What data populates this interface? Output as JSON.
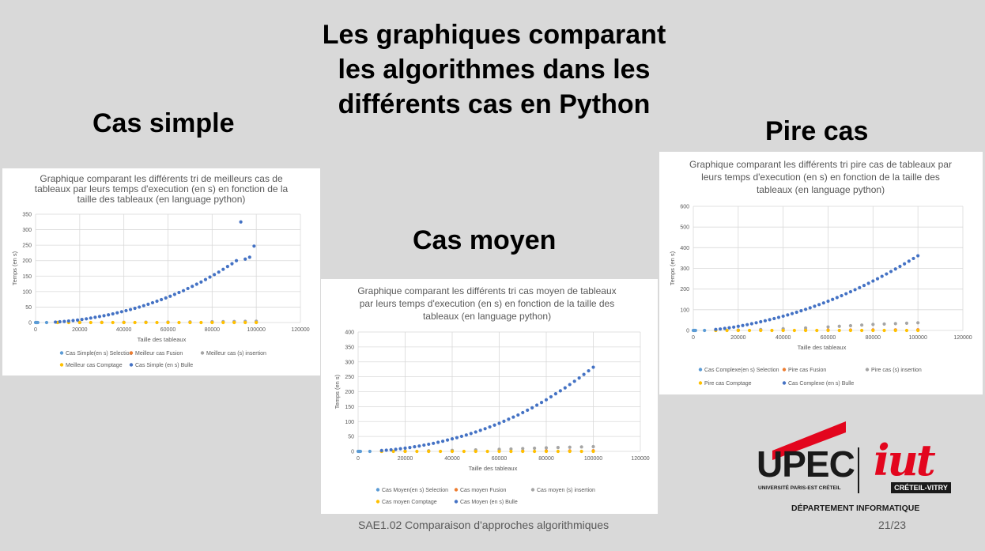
{
  "slide": {
    "title_lines": [
      "Les graphiques comparant",
      "les algorithmes dans les",
      "différents cas en Python"
    ],
    "footer": "SAE1.02 Comparaison d'approches algorithmiques",
    "page_number": "21/23",
    "department": "DÉPARTEMENT INFORMATIQUE",
    "logo": {
      "upec": "UPEC",
      "upec_sub": "UNIVERSITÉ PARIS-EST CRÉTEIL",
      "iut": "iut",
      "iut_badge": "CRÉTEIL-VITRY"
    }
  },
  "sections": {
    "simple": "Cas simple",
    "moyen": "Cas moyen",
    "pire": "Pire cas"
  },
  "colors": {
    "selection": "#5b9bd5",
    "fusion": "#ed7d31",
    "insertion": "#a5a5a5",
    "comptage": "#ffc000",
    "bulle": "#4472c4"
  },
  "chart_data": [
    {
      "id": "simple",
      "type": "scatter",
      "title_lines": [
        "Graphique comparant les différents tri de meilleurs cas de",
        "tableaux par leurs temps d'execution (en s) en fonction de la",
        "taille des tableaux (en language python)"
      ],
      "xlabel": "Taille des tableaux",
      "ylabel": "Temps (en s)",
      "xlim": [
        0,
        120000
      ],
      "ylim": [
        0,
        350
      ],
      "x_ticks": [
        0,
        20000,
        40000,
        60000,
        80000,
        100000,
        120000
      ],
      "y_ticks": [
        0,
        50,
        100,
        150,
        200,
        250,
        300,
        350
      ],
      "grid": true,
      "legend_position": "bottom",
      "series": [
        {
          "name": "Cas Simple(en s) Selection",
          "color_key": "selection",
          "x": [
            0,
            500,
            1000,
            5000
          ],
          "y": [
            0,
            0,
            0,
            0
          ]
        },
        {
          "name": "Meilleur cas Fusion",
          "color_key": "fusion",
          "x": [
            10000,
            20000,
            30000,
            40000,
            50000,
            60000,
            70000,
            80000,
            90000,
            100000
          ],
          "y": [
            0.1,
            0.2,
            0.3,
            0.4,
            0.5,
            0.6,
            0.7,
            0.8,
            0.9,
            1.0
          ]
        },
        {
          "name": "Meilleur cas (s) insertion",
          "color_key": "insertion",
          "x": [
            10000,
            20000,
            30000,
            40000,
            50000,
            60000,
            70000,
            80000,
            85000,
            90000,
            95000,
            100000
          ],
          "y": [
            0.1,
            0.3,
            0.5,
            0.8,
            1.1,
            1.5,
            2,
            2.6,
            3.0,
            3.4,
            3.8,
            4.2
          ]
        },
        {
          "name": "Meilleur cas Comptage",
          "color_key": "comptage",
          "x": [
            10000,
            15000,
            20000,
            25000,
            30000,
            35000,
            40000,
            45000,
            50000,
            55000,
            60000,
            65000,
            70000,
            75000,
            80000,
            85000,
            90000,
            95000,
            100000
          ],
          "y": [
            0,
            0,
            0,
            0,
            0,
            0,
            0,
            0,
            0,
            0,
            0,
            0,
            0,
            0,
            0,
            0,
            0,
            0,
            0
          ]
        },
        {
          "name": "Cas Simple (en s) Bulle",
          "color_key": "bulle",
          "x": [
            9000,
            11000,
            13000,
            15000,
            17000,
            19000,
            21000,
            23000,
            25000,
            27000,
            29000,
            31000,
            33000,
            35000,
            37000,
            39000,
            41000,
            43000,
            45000,
            47000,
            49000,
            51000,
            53000,
            55000,
            57000,
            59000,
            61000,
            63000,
            65000,
            67000,
            69000,
            71000,
            73000,
            75000,
            77000,
            79000,
            81000,
            83000,
            85000,
            87000,
            89000,
            91000,
            93000,
            95000,
            97000,
            99000
          ],
          "y": [
            1.5,
            2.5,
            3.5,
            5,
            6.5,
            8,
            10,
            12,
            14.5,
            17,
            19.5,
            22,
            25,
            28,
            31.5,
            35,
            38.5,
            42,
            46,
            50,
            54.5,
            59,
            64,
            69,
            74,
            79.5,
            85,
            91,
            97,
            103,
            110,
            117,
            124,
            131,
            139,
            147,
            155,
            163,
            172,
            181,
            190,
            200,
            325,
            205,
            211,
            247
          ]
        }
      ]
    },
    {
      "id": "moyen",
      "type": "scatter",
      "title_lines": [
        "Graphique comparant les différents tri cas moyen de tableaux",
        "par leurs temps d'execution (en s) en fonction de la taille des",
        "tableaux (en language python)"
      ],
      "xlabel": "Taille des tableaux",
      "ylabel": "Temps (en s)",
      "xlim": [
        0,
        120000
      ],
      "ylim": [
        0,
        400
      ],
      "x_ticks": [
        0,
        20000,
        40000,
        60000,
        80000,
        100000,
        120000
      ],
      "y_ticks": [
        0,
        50,
        100,
        150,
        200,
        250,
        300,
        350,
        400
      ],
      "grid": true,
      "legend_position": "bottom",
      "series": [
        {
          "name": "Cas Moyen(en s) Selection",
          "color_key": "selection",
          "x": [
            0,
            500,
            1000,
            5000
          ],
          "y": [
            0,
            0,
            0,
            0
          ]
        },
        {
          "name": "Cas moyen Fusion",
          "color_key": "fusion",
          "x": [
            10000,
            20000,
            30000,
            40000,
            50000,
            60000,
            70000,
            80000,
            90000,
            100000
          ],
          "y": [
            0.2,
            0.4,
            0.6,
            0.8,
            1.0,
            1.2,
            1.4,
            1.6,
            1.8,
            2.0
          ]
        },
        {
          "name": "Cas moyen (s) insertion",
          "color_key": "insertion",
          "x": [
            10000,
            20000,
            30000,
            40000,
            50000,
            60000,
            65000,
            70000,
            75000,
            80000,
            85000,
            90000,
            95000,
            100000
          ],
          "y": [
            0.3,
            1,
            2,
            3.5,
            5,
            7,
            8,
            9.5,
            10.5,
            12,
            13,
            14,
            15,
            16
          ]
        },
        {
          "name": "Cas moyen Comptage",
          "color_key": "comptage",
          "x": [
            10000,
            15000,
            20000,
            25000,
            30000,
            35000,
            40000,
            45000,
            50000,
            55000,
            60000,
            65000,
            70000,
            75000,
            80000,
            85000,
            90000,
            95000,
            100000
          ],
          "y": [
            0,
            0,
            0,
            0,
            0,
            0,
            0,
            0,
            0,
            0,
            0,
            0,
            0,
            0,
            0,
            0,
            0,
            0,
            0
          ]
        },
        {
          "name": "Cas Moyen (en s) Bulle",
          "color_key": "bulle",
          "x": [
            10000,
            12000,
            14000,
            16000,
            18000,
            20000,
            22000,
            24000,
            26000,
            28000,
            30000,
            32000,
            34000,
            36000,
            38000,
            40000,
            42000,
            44000,
            46000,
            48000,
            50000,
            52000,
            54000,
            56000,
            58000,
            60000,
            62000,
            64000,
            66000,
            68000,
            70000,
            72000,
            74000,
            76000,
            78000,
            80000,
            82000,
            84000,
            86000,
            88000,
            90000,
            92000,
            94000,
            96000,
            98000,
            100000
          ],
          "y": [
            3,
            4,
            5.5,
            7,
            9,
            11,
            13,
            15.5,
            18,
            21,
            24,
            27,
            30.5,
            34,
            38,
            42,
            46,
            50.5,
            55,
            60,
            65,
            70.5,
            76,
            82,
            88,
            94,
            101,
            108,
            115,
            122,
            130,
            138,
            146,
            155,
            164,
            173,
            183,
            193,
            203,
            213,
            224,
            235,
            246,
            258,
            270,
            282
          ]
        }
      ]
    },
    {
      "id": "pire",
      "type": "scatter",
      "title_lines": [
        "Graphique comparant les différents tri pire cas de tableaux par",
        "leurs temps d'execution (en s) en fonction de la taille des",
        "tableaux (en language python)"
      ],
      "xlabel": "Taille des tableaux",
      "ylabel": "Temps (en s)",
      "xlim": [
        0,
        120000
      ],
      "ylim": [
        0,
        600
      ],
      "x_ticks": [
        0,
        20000,
        40000,
        60000,
        80000,
        100000,
        120000
      ],
      "y_ticks": [
        0,
        100,
        200,
        300,
        400,
        500,
        600
      ],
      "grid": true,
      "legend_position": "bottom",
      "series": [
        {
          "name": "Cas Complexe(en s) Selection",
          "color_key": "selection",
          "x": [
            0,
            500,
            1000,
            5000
          ],
          "y": [
            0,
            0,
            0,
            0
          ]
        },
        {
          "name": "Pire cas Fusion",
          "color_key": "fusion",
          "x": [
            10000,
            20000,
            30000,
            40000,
            50000,
            60000,
            70000,
            80000,
            90000,
            100000
          ],
          "y": [
            0.3,
            0.6,
            0.9,
            1.2,
            1.5,
            1.8,
            2.1,
            2.4,
            2.7,
            3.0
          ]
        },
        {
          "name": "Pire cas (s) insertion",
          "color_key": "insertion",
          "x": [
            10000,
            20000,
            30000,
            40000,
            50000,
            60000,
            65000,
            70000,
            75000,
            80000,
            85000,
            90000,
            95000,
            100000
          ],
          "y": [
            0.5,
            2,
            4.5,
            8,
            12,
            17,
            20,
            23,
            26,
            29,
            31,
            33,
            35,
            37
          ]
        },
        {
          "name": "Pire cas Comptage",
          "color_key": "comptage",
          "x": [
            10000,
            15000,
            20000,
            25000,
            30000,
            35000,
            40000,
            45000,
            50000,
            55000,
            60000,
            65000,
            70000,
            75000,
            80000,
            85000,
            90000,
            95000,
            100000
          ],
          "y": [
            0,
            0,
            0,
            0,
            0,
            0,
            0,
            0,
            0,
            0,
            0,
            0,
            0,
            0,
            0,
            0,
            0,
            0,
            0
          ]
        },
        {
          "name": "Cas Complexe (en s) Bulle",
          "color_key": "bulle",
          "x": [
            10000,
            12000,
            14000,
            16000,
            18000,
            20000,
            22000,
            24000,
            26000,
            28000,
            30000,
            32000,
            34000,
            36000,
            38000,
            40000,
            42000,
            44000,
            46000,
            48000,
            50000,
            52000,
            54000,
            56000,
            58000,
            60000,
            62000,
            64000,
            66000,
            68000,
            70000,
            72000,
            74000,
            76000,
            78000,
            80000,
            82000,
            84000,
            86000,
            88000,
            90000,
            92000,
            94000,
            96000,
            98000,
            100000
          ],
          "y": [
            5,
            7,
            10,
            13,
            16,
            20,
            24,
            28,
            32.5,
            37,
            42,
            47,
            52,
            57.5,
            63,
            69,
            75,
            81.5,
            88,
            95,
            102,
            109.5,
            117,
            125,
            133,
            141.5,
            150,
            159,
            168,
            177.5,
            187,
            197,
            207,
            217.5,
            228,
            239,
            250,
            261.5,
            273,
            285,
            297,
            309.5,
            322,
            335,
            348,
            361
          ]
        }
      ]
    }
  ]
}
